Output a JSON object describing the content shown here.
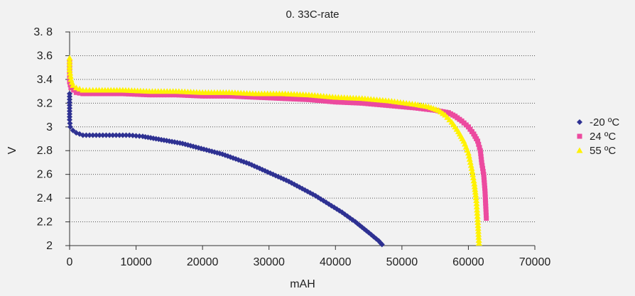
{
  "chart_data": {
    "type": "scatter",
    "title": "0. 33C-rate",
    "xlabel": "mAH",
    "ylabel": "V",
    "xlim": [
      0,
      70000
    ],
    "ylim": [
      2,
      3.8
    ],
    "x_ticks": [
      "0",
      "10000",
      "20000",
      "30000",
      "40000",
      "50000",
      "60000",
      "70000"
    ],
    "y_ticks": [
      "2",
      "2.2",
      "2.4",
      "2.6",
      "2.8",
      "3",
      "3.2",
      "3.4",
      "3.6",
      "3.8"
    ],
    "y_tick_display": [
      "2",
      "2.2",
      "2.4",
      "2.6",
      "2.8",
      "3",
      "3.2",
      "3.4",
      "3.6",
      "3. 8"
    ],
    "grid": "horizontal-dotted",
    "legend_position": "right",
    "series": [
      {
        "name": "-20 ºC",
        "marker": "diamond",
        "color": "#2e3192",
        "points": [
          [
            0,
            3.28
          ],
          [
            0,
            3.06
          ],
          [
            100,
            3.0
          ],
          [
            500,
            2.97
          ],
          [
            1000,
            2.95
          ],
          [
            2000,
            2.93
          ],
          [
            3000,
            2.93
          ],
          [
            5000,
            2.93
          ],
          [
            7000,
            2.93
          ],
          [
            9000,
            2.93
          ],
          [
            11000,
            2.92
          ],
          [
            13000,
            2.9
          ],
          [
            15000,
            2.88
          ],
          [
            17000,
            2.86
          ],
          [
            19000,
            2.83
          ],
          [
            21000,
            2.8
          ],
          [
            23000,
            2.77
          ],
          [
            25000,
            2.73
          ],
          [
            27000,
            2.69
          ],
          [
            29000,
            2.64
          ],
          [
            31000,
            2.59
          ],
          [
            33000,
            2.54
          ],
          [
            35000,
            2.48
          ],
          [
            37000,
            2.42
          ],
          [
            39000,
            2.35
          ],
          [
            41000,
            2.28
          ],
          [
            43000,
            2.2
          ],
          [
            45000,
            2.11
          ],
          [
            46500,
            2.04
          ],
          [
            47000,
            2.01
          ]
        ]
      },
      {
        "name": "24 ºC",
        "marker": "square",
        "color": "#ec4a9f",
        "points": [
          [
            0,
            3.55
          ],
          [
            0,
            3.38
          ],
          [
            200,
            3.33
          ],
          [
            600,
            3.31
          ],
          [
            1000,
            3.29
          ],
          [
            2000,
            3.28
          ],
          [
            4000,
            3.28
          ],
          [
            8000,
            3.28
          ],
          [
            12000,
            3.27
          ],
          [
            16000,
            3.27
          ],
          [
            20000,
            3.26
          ],
          [
            24000,
            3.26
          ],
          [
            28000,
            3.25
          ],
          [
            32000,
            3.24
          ],
          [
            36000,
            3.23
          ],
          [
            40000,
            3.21
          ],
          [
            44000,
            3.2
          ],
          [
            48000,
            3.18
          ],
          [
            52000,
            3.16
          ],
          [
            55000,
            3.14
          ],
          [
            57000,
            3.12
          ],
          [
            58000,
            3.09
          ],
          [
            59000,
            3.05
          ],
          [
            60000,
            3.0
          ],
          [
            60800,
            2.94
          ],
          [
            61400,
            2.88
          ],
          [
            61800,
            2.8
          ],
          [
            62000,
            2.7
          ],
          [
            62300,
            2.6
          ],
          [
            62500,
            2.46
          ],
          [
            62700,
            2.23
          ]
        ]
      },
      {
        "name": "55 ºC",
        "marker": "triangle",
        "color": "#fff200",
        "points": [
          [
            0,
            3.58
          ],
          [
            0,
            3.48
          ],
          [
            200,
            3.4
          ],
          [
            500,
            3.35
          ],
          [
            1000,
            3.33
          ],
          [
            2000,
            3.31
          ],
          [
            4000,
            3.31
          ],
          [
            8000,
            3.31
          ],
          [
            12000,
            3.3
          ],
          [
            16000,
            3.3
          ],
          [
            20000,
            3.29
          ],
          [
            24000,
            3.29
          ],
          [
            28000,
            3.28
          ],
          [
            32000,
            3.28
          ],
          [
            36000,
            3.27
          ],
          [
            40000,
            3.25
          ],
          [
            44000,
            3.24
          ],
          [
            48000,
            3.22
          ],
          [
            52000,
            3.19
          ],
          [
            54000,
            3.17
          ],
          [
            55500,
            3.14
          ],
          [
            56500,
            3.1
          ],
          [
            57500,
            3.04
          ],
          [
            58500,
            2.96
          ],
          [
            59300,
            2.88
          ],
          [
            60000,
            2.78
          ],
          [
            60500,
            2.65
          ],
          [
            60900,
            2.52
          ],
          [
            61200,
            2.38
          ],
          [
            61400,
            2.22
          ],
          [
            61600,
            2.02
          ]
        ]
      }
    ]
  }
}
